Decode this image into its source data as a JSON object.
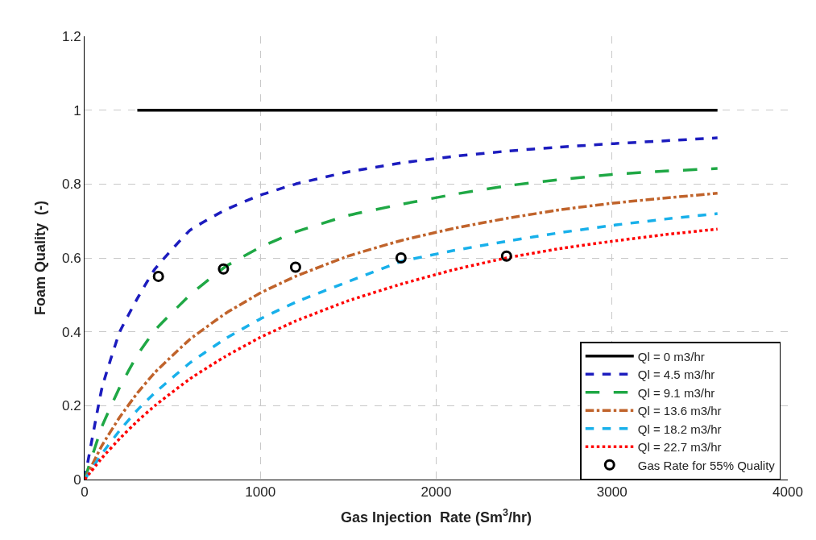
{
  "chart_data": {
    "type": "line",
    "xlabel": "Gas Injection  Rate (Sm$^{3}$/hr)",
    "ylabel": "Foam Quality  (-)",
    "xlim": [
      0,
      4000
    ],
    "xticks": [
      0,
      1000,
      2000,
      3000,
      4000
    ],
    "ylim": [
      0,
      1.2
    ],
    "yticks": [
      0,
      0.2,
      0.4,
      0.6,
      0.8,
      1,
      1.2
    ],
    "grid": true,
    "legend": "bottom right",
    "marker": "none",
    "series": [
      {
        "name": "Ql = 0 m3/hr",
        "color": "#000000",
        "line_style": "solid",
        "x": [
          300,
          3600
        ],
        "values": [
          1,
          1
        ]
      },
      {
        "name": "Ql = 4.5 m3/hr",
        "color": "#1c1cbe",
        "line_style": "dashed",
        "x": [
          0,
          100,
          200,
          300,
          400,
          600,
          800,
          1000,
          1200,
          1500,
          1800,
          2100,
          2400,
          2700,
          3000,
          3300,
          3600
        ],
        "values": [
          0,
          0.25,
          0.4,
          0.49,
          0.57,
          0.675,
          0.73,
          0.77,
          0.8,
          0.833,
          0.857,
          0.875,
          0.889,
          0.9,
          0.909,
          0.917,
          0.925
        ]
      },
      {
        "name": "Ql = 9.1 m3/hr",
        "color": "#1fa845",
        "line_style": "longdash",
        "x": [
          0,
          100,
          200,
          300,
          400,
          600,
          800,
          1000,
          1200,
          1500,
          1800,
          2100,
          2400,
          2700,
          3000,
          3300,
          3600
        ],
        "values": [
          0,
          0.145,
          0.25,
          0.337,
          0.404,
          0.5,
          0.576,
          0.629,
          0.67,
          0.715,
          0.745,
          0.772,
          0.795,
          0.812,
          0.826,
          0.835,
          0.842
        ]
      },
      {
        "name": "Ql = 13.6 m3/hr",
        "color": "#c0632b",
        "line_style": "dashdot",
        "x": [
          0,
          100,
          200,
          300,
          400,
          600,
          800,
          1000,
          1200,
          1500,
          1800,
          2100,
          2400,
          2700,
          3000,
          3300,
          3600
        ],
        "values": [
          0,
          0.093,
          0.169,
          0.234,
          0.29,
          0.38,
          0.449,
          0.505,
          0.55,
          0.605,
          0.647,
          0.68,
          0.707,
          0.73,
          0.748,
          0.762,
          0.775
        ]
      },
      {
        "name": "Ql = 18.2 m3/hr",
        "color": "#18b0ea",
        "line_style": "dashed",
        "x": [
          0,
          100,
          200,
          300,
          400,
          600,
          800,
          1000,
          1200,
          1500,
          1800,
          2100,
          2400,
          2700,
          3000,
          3300,
          3600
        ],
        "values": [
          0,
          0.071,
          0.133,
          0.188,
          0.235,
          0.316,
          0.381,
          0.435,
          0.48,
          0.536,
          0.59,
          0.62,
          0.645,
          0.668,
          0.688,
          0.705,
          0.72
        ]
      },
      {
        "name": "Ql = 22.7 m3/hr",
        "color": "#ff0000",
        "line_style": "dotted",
        "x": [
          0,
          100,
          200,
          300,
          400,
          600,
          800,
          1000,
          1200,
          1500,
          1800,
          2100,
          2400,
          2700,
          3000,
          3300,
          3600
        ],
        "values": [
          0,
          0.059,
          0.111,
          0.158,
          0.2,
          0.273,
          0.333,
          0.385,
          0.429,
          0.484,
          0.529,
          0.568,
          0.6,
          0.625,
          0.645,
          0.663,
          0.678
        ]
      },
      {
        "name": "Gas Rate for 55% Quality",
        "type": "scatter",
        "marker": "circle",
        "color": "#000000",
        "x": [
          420,
          790,
          1200,
          1800,
          2400
        ],
        "values": [
          0.55,
          0.57,
          0.575,
          0.6,
          0.605
        ]
      }
    ]
  }
}
